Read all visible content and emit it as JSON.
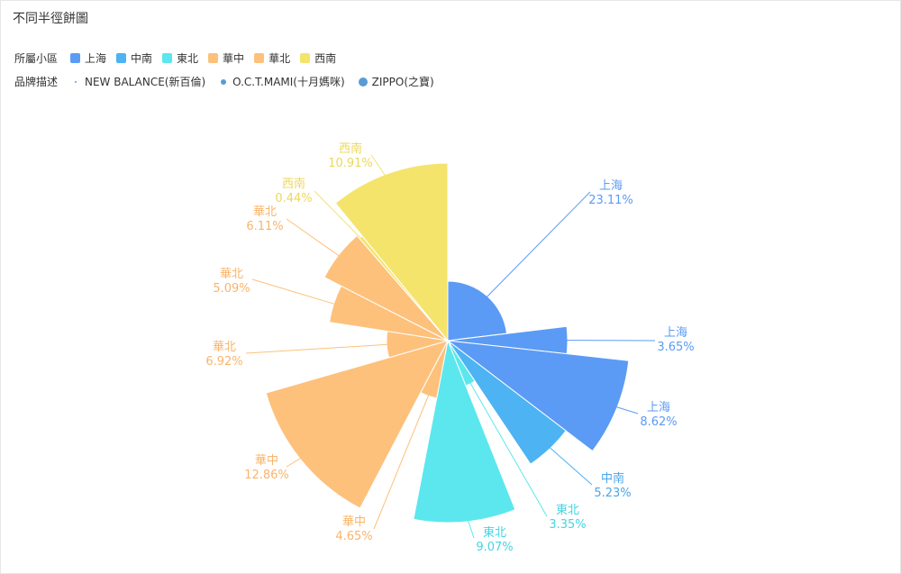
{
  "title": "不同半徑餅圖",
  "legend_color": {
    "label": "所屬小區",
    "items": [
      {
        "name": "上海",
        "color": "#5b9bf5"
      },
      {
        "name": "中南",
        "color": "#4db3f3"
      },
      {
        "name": "東北",
        "color": "#5ce7ee"
      },
      {
        "name": "華中",
        "color": "#fdc17c"
      },
      {
        "name": "華北",
        "color": "#fdc17c"
      },
      {
        "name": "西南",
        "color": "#f4e46c"
      }
    ]
  },
  "legend_size": {
    "label": "品牌描述",
    "items": [
      {
        "name": "NEW BALANCE(新百倫)"
      },
      {
        "name": "O.C.T.MAMI(十月媽咪)"
      },
      {
        "name": "ZIPPO(之寶)"
      }
    ]
  },
  "chart_data": {
    "type": "pie",
    "title": "不同半徑餅圖",
    "subtype": "rose (variable radius)",
    "slices": [
      {
        "region": "上海",
        "percent": 23.11,
        "label": "23.11%",
        "brand": "NEW BALANCE(新百倫)"
      },
      {
        "region": "上海",
        "percent": 3.65,
        "label": "3.65%",
        "brand": "O.C.T.MAMI(十月媽咪)"
      },
      {
        "region": "上海",
        "percent": 8.62,
        "label": "8.62%",
        "brand": "ZIPPO(之寶)"
      },
      {
        "region": "中南",
        "percent": 5.23,
        "label": "5.23%",
        "brand": "ZIPPO(之寶)"
      },
      {
        "region": "東北",
        "percent": 3.35,
        "label": "3.35%",
        "brand": "NEW BALANCE(新百倫)"
      },
      {
        "region": "東北",
        "percent": 9.07,
        "label": "9.07%",
        "brand": "ZIPPO(之寶)"
      },
      {
        "region": "華中",
        "percent": 4.65,
        "label": "4.65%",
        "brand": "O.C.T.MAMI(十月媽咪)"
      },
      {
        "region": "華中",
        "percent": 12.86,
        "label": "12.86%",
        "brand": "ZIPPO(之寶)"
      },
      {
        "region": "華北",
        "percent": 6.92,
        "label": "6.92%",
        "brand": "NEW BALANCE(新百倫)"
      },
      {
        "region": "華北",
        "percent": 5.09,
        "label": "5.09%",
        "brand": "O.C.T.MAMI(十月媽咪)"
      },
      {
        "region": "華北",
        "percent": 6.11,
        "label": "6.11%",
        "brand": "ZIPPO(之寶)"
      },
      {
        "region": "西南",
        "percent": 0.44,
        "label": "0.44%",
        "brand": "NEW BALANCE(新百倫)"
      },
      {
        "region": "西南",
        "percent": 10.91,
        "label": "10.91%",
        "brand": "ZIPPO(之寶)"
      }
    ],
    "label_colors": {
      "上海": "#5b9bf5",
      "中南": "#4aa6e8",
      "東北": "#45d4e0",
      "華中": "#fab46a",
      "華北": "#fab46a",
      "西南": "#ecd85c"
    }
  }
}
